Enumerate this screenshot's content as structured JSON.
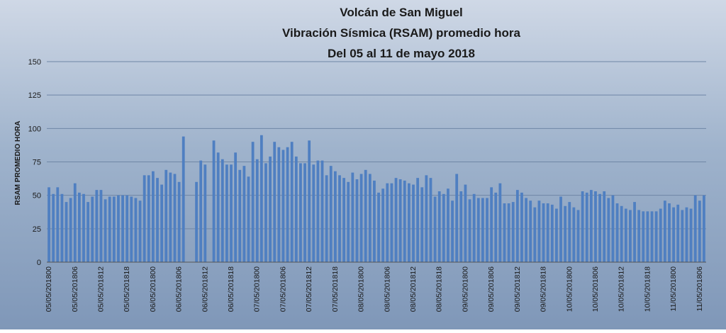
{
  "chart_data": {
    "type": "bar",
    "title": [
      "Volcán de San Miguel",
      "Vibración Sísmica (RSAM) promedio hora",
      "Del  05 al 11 de mayo 2018"
    ],
    "xlabel": "",
    "ylabel": "RSAM PROMEDIO HORA",
    "ylim": [
      0,
      150
    ],
    "yticks": [
      0,
      25,
      50,
      75,
      100,
      125,
      150
    ],
    "grid": true,
    "bar_color": "#4f7fc1",
    "tick_labels": [
      "05/05/201800",
      "05/05/201806",
      "05/05/201812",
      "05/05/201818",
      "06/05/201800",
      "06/05/201806",
      "06/05/201812",
      "06/05/201818",
      "07/05/201800",
      "07/05/201806",
      "07/05/201812",
      "07/05/201818",
      "08/05/201800",
      "08/05/201806",
      "08/05/201812",
      "08/05/201818",
      "09/05/201800",
      "09/05/201806",
      "09/05/201812",
      "09/05/201818",
      "10/05/201800",
      "10/05/201806",
      "10/05/201812",
      "10/05/201818",
      "11/05/201800",
      "11/05/201806"
    ],
    "values": [
      56,
      51,
      56,
      51,
      45,
      48,
      59,
      52,
      51,
      45,
      49,
      54,
      54,
      47,
      49,
      49,
      50,
      50,
      50,
      49,
      48,
      46,
      65,
      65,
      68,
      63,
      58,
      69,
      67,
      66,
      60,
      94,
      null,
      null,
      60,
      76,
      73,
      null,
      91,
      82,
      77,
      73,
      73,
      82,
      69,
      72,
      64,
      90,
      77,
      95,
      74,
      79,
      90,
      86,
      84,
      86,
      90,
      79,
      74,
      74,
      91,
      73,
      76,
      76,
      65,
      72,
      68,
      65,
      63,
      60,
      67,
      62,
      66,
      69,
      66,
      61,
      52,
      55,
      59,
      59,
      63,
      62,
      61,
      59,
      58,
      63,
      56,
      65,
      63,
      49,
      53,
      51,
      55,
      46,
      66,
      53,
      58,
      47,
      51,
      48,
      48,
      48,
      56,
      52,
      59,
      44,
      44,
      45,
      54,
      52,
      48,
      46,
      41,
      46,
      44,
      44,
      43,
      40,
      49,
      42,
      45,
      41,
      39,
      53,
      52,
      54,
      53,
      51,
      53,
      48,
      50,
      44,
      42,
      40,
      39,
      45,
      39,
      38,
      38,
      38,
      38,
      40,
      46,
      44,
      41,
      43,
      39,
      41,
      40,
      50,
      46,
      50
    ]
  }
}
